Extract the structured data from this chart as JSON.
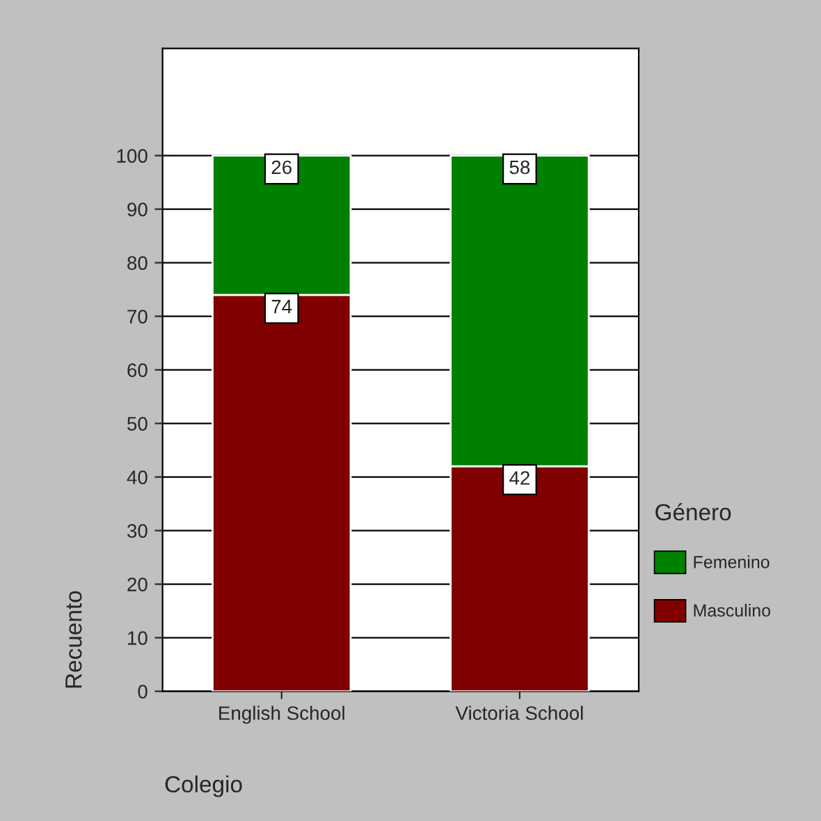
{
  "chart_data": {
    "type": "bar",
    "stacked": true,
    "xlabel": "Colegio",
    "ylabel": "Recuento",
    "legend_title": "Género",
    "categories": [
      "English School",
      "Victoria School"
    ],
    "series": [
      {
        "name": "Masculino",
        "color": "#800000",
        "values": [
          74,
          42
        ]
      },
      {
        "name": "Femenino",
        "color": "#008000",
        "values": [
          26,
          58
        ]
      }
    ],
    "ylim": [
      0,
      120
    ],
    "yticks": [
      0,
      10,
      20,
      30,
      40,
      50,
      60,
      70,
      80,
      90,
      100
    ],
    "grid": "y",
    "legend": "right",
    "data_labels": true
  }
}
